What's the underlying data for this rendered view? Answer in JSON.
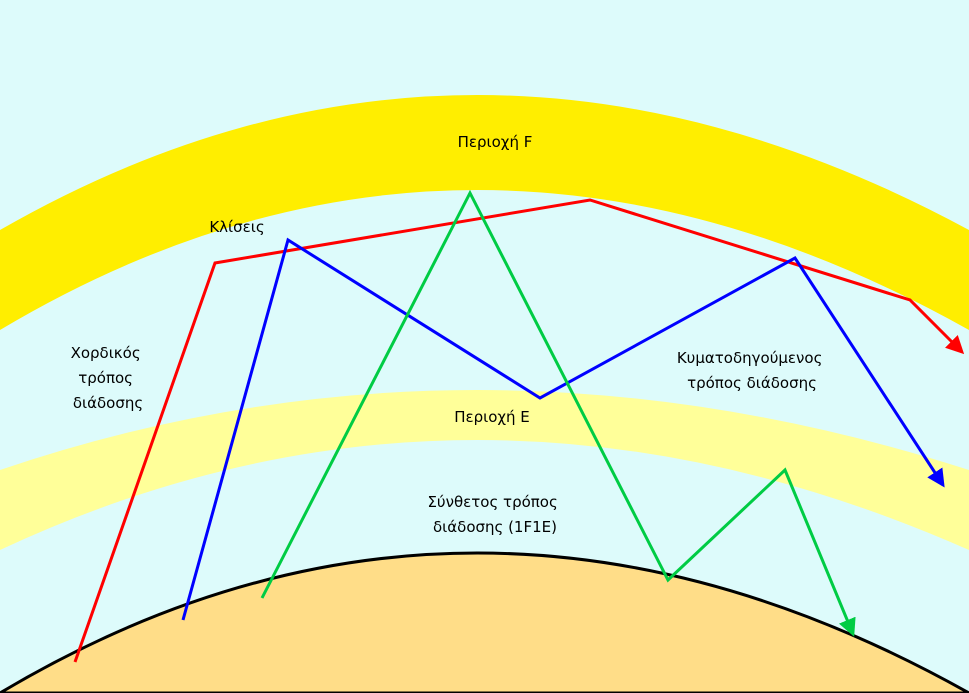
{
  "labels": {
    "region_f": "Περιοχή F",
    "slopes": "Κλίσεις",
    "chordal_mode": [
      "Χορδικός",
      "τρόπος",
      "διάδοσης"
    ],
    "ducted_mode": [
      "Κυματοδηγούμενος",
      "τρόπος διάδοσης"
    ],
    "region_e": "Περιοχή E",
    "composite_mode": [
      "Σύνθετος τρόπος",
      "διάδοσης  (1F1E)"
    ]
  }
}
